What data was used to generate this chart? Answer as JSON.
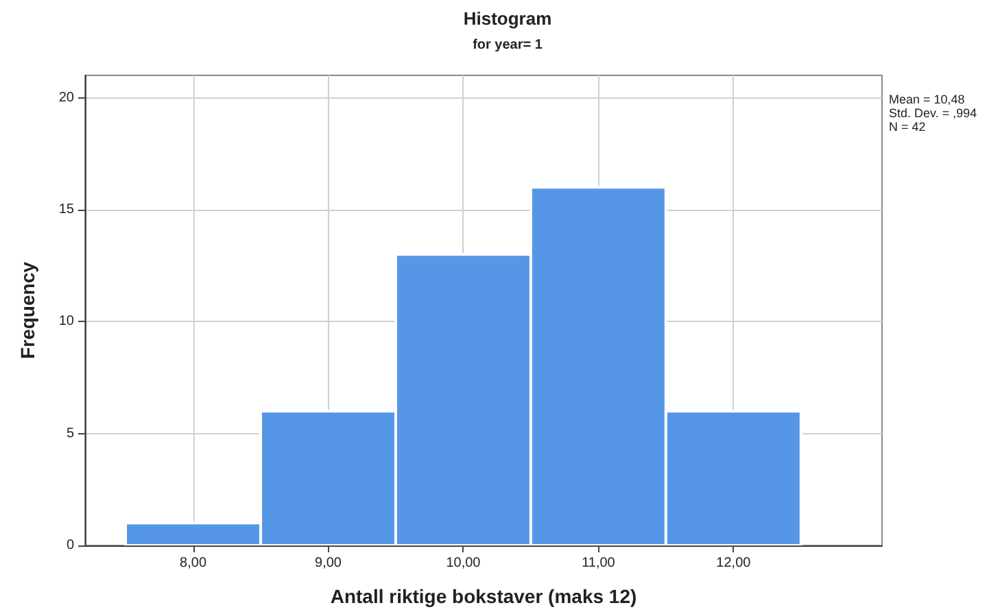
{
  "chart_data": {
    "type": "histogram",
    "title": "Histogram",
    "subtitle": "for year= 1",
    "xlabel": "Antall riktige bokstaver (maks 12)",
    "ylabel": "Frequency",
    "annotations": [
      "Mean = 10,48",
      "Std. Dev. = ,994",
      "N = 42"
    ],
    "bins": [
      7.5,
      8.5,
      9.5,
      10.5,
      11.5,
      12.5
    ],
    "values": [
      1,
      6,
      13,
      16,
      6
    ],
    "color": "#5596e6",
    "xlim": [
      7.2,
      13.1
    ],
    "xticks": [
      {
        "value": 8,
        "label": "8,00"
      },
      {
        "value": 9,
        "label": "9,00"
      },
      {
        "value": 10,
        "label": "10,00"
      },
      {
        "value": 11,
        "label": "11,00"
      },
      {
        "value": 12,
        "label": "12,00"
      }
    ],
    "ylim": [
      0,
      21
    ],
    "yticks": [
      0,
      5,
      10,
      15,
      20
    ],
    "grid": true
  }
}
